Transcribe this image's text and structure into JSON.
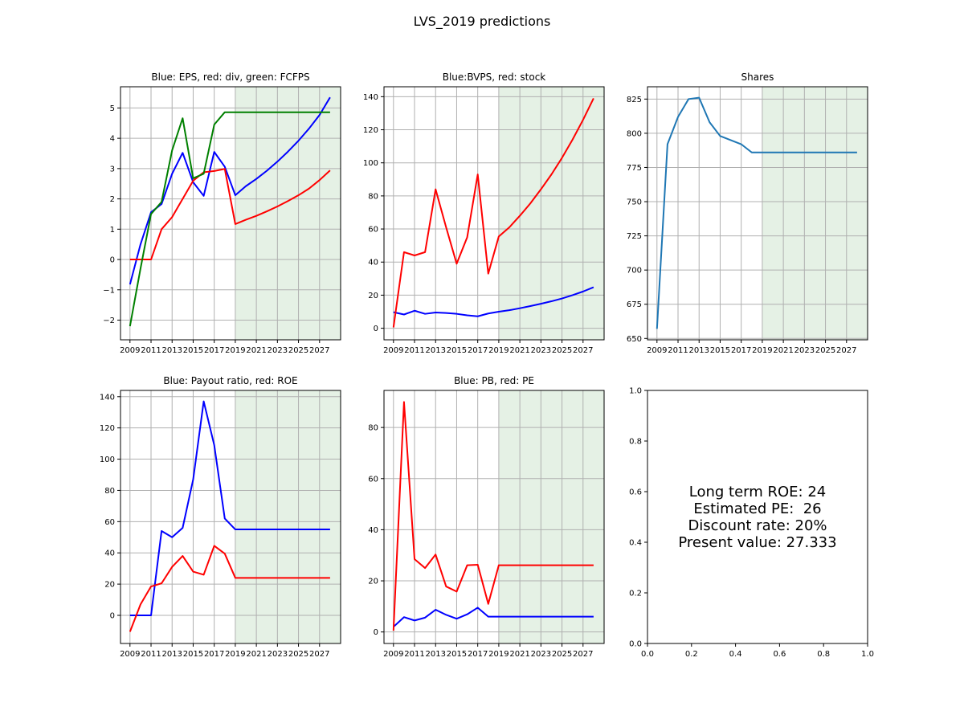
{
  "figure": {
    "suptitle": "LVS_2019 predictions",
    "colors": {
      "blue": "#0000ff",
      "red": "#ff0000",
      "green": "#008000",
      "default_line": "#1f77b4",
      "shade": "#e5f1e5",
      "grid": "#b0b0b0"
    },
    "text_panel": {
      "lines": [
        "Long term ROE: 24",
        "Estimated PE:  26",
        "Discount rate: 20%",
        "Present value: 27.333"
      ],
      "xlim": [
        0,
        1
      ],
      "ylim": [
        0,
        1
      ],
      "xticks": [
        "0.0",
        "0.2",
        "0.4",
        "0.6",
        "0.8",
        "1.0"
      ],
      "yticks": [
        "0.0",
        "0.2",
        "0.4",
        "0.6",
        "0.8",
        "1.0"
      ]
    }
  },
  "chart_data": [
    {
      "type": "line",
      "title": "Blue: EPS, red: div, green: FCFPS",
      "xlim": [
        2008.1,
        2029.0
      ],
      "ylim": [
        -2.65,
        5.7
      ],
      "xticks": [
        2009,
        2011,
        2013,
        2015,
        2017,
        2019,
        2021,
        2023,
        2025,
        2027
      ],
      "yticks": [
        -2,
        -1,
        0,
        1,
        2,
        3,
        4,
        5
      ],
      "grid": true,
      "shaded_x": [
        2019,
        2029.0
      ],
      "x": [
        2009,
        2010,
        2011,
        2012,
        2013,
        2014,
        2015,
        2016,
        2017,
        2018,
        2019,
        2020,
        2021,
        2022,
        2023,
        2024,
        2025,
        2026,
        2027,
        2028
      ],
      "series": [
        {
          "color": "blue",
          "values": [
            -0.82,
            0.5,
            1.56,
            1.83,
            2.83,
            3.52,
            2.55,
            2.1,
            3.55,
            3.06,
            2.12,
            2.42,
            2.66,
            2.93,
            3.23,
            3.56,
            3.92,
            4.32,
            4.77,
            5.35
          ]
        },
        {
          "color": "red",
          "values": [
            0,
            0,
            0,
            1.0,
            1.4,
            2.0,
            2.6,
            2.88,
            2.92,
            2.99,
            1.17,
            1.31,
            1.44,
            1.59,
            1.75,
            1.93,
            2.12,
            2.34,
            2.62,
            2.94
          ]
        },
        {
          "color": "green",
          "values": [
            -2.2,
            -0.3,
            1.5,
            1.9,
            3.6,
            4.66,
            2.68,
            2.83,
            4.45,
            4.86,
            4.86,
            4.86,
            4.86,
            4.86,
            4.86,
            4.86,
            4.86,
            4.86,
            4.86,
            4.86
          ]
        }
      ]
    },
    {
      "type": "line",
      "title": "Blue:BVPS, red: stock",
      "xlim": [
        2008.1,
        2029.0
      ],
      "ylim": [
        -7,
        146
      ],
      "xticks": [
        2009,
        2011,
        2013,
        2015,
        2017,
        2019,
        2021,
        2023,
        2025,
        2027
      ],
      "yticks": [
        0,
        20,
        40,
        60,
        80,
        100,
        120,
        140
      ],
      "grid": true,
      "shaded_x": [
        2019,
        2029.0
      ],
      "x": [
        2009,
        2010,
        2011,
        2012,
        2013,
        2014,
        2015,
        2016,
        2017,
        2018,
        2019,
        2020,
        2021,
        2022,
        2023,
        2024,
        2025,
        2026,
        2027,
        2028
      ],
      "series": [
        {
          "color": "blue",
          "values": [
            9.7,
            8.3,
            10.6,
            8.7,
            9.5,
            9.2,
            8.7,
            7.8,
            7.2,
            8.9,
            10.0,
            10.9,
            12.1,
            13.4,
            14.8,
            16.3,
            18.0,
            20.0,
            22.2,
            24.8
          ]
        },
        {
          "color": "red",
          "values": [
            0.5,
            46,
            44,
            46,
            84,
            61,
            39,
            55,
            93,
            33,
            55.5,
            61,
            68,
            75.5,
            84,
            93,
            103,
            114,
            126,
            139
          ]
        }
      ]
    },
    {
      "type": "line",
      "title": "Shares",
      "xlim": [
        2008.1,
        2029.0
      ],
      "ylim": [
        649,
        834
      ],
      "xticks": [
        2009,
        2011,
        2013,
        2015,
        2017,
        2019,
        2021,
        2023,
        2025,
        2027
      ],
      "yticks": [
        650,
        675,
        700,
        725,
        750,
        775,
        800,
        825
      ],
      "grid": true,
      "shaded_x": [
        2019,
        2029.0
      ],
      "x": [
        2009,
        2010,
        2011,
        2012,
        2013,
        2014,
        2015,
        2016,
        2017,
        2018,
        2019,
        2020,
        2021,
        2022,
        2023,
        2024,
        2025,
        2026,
        2027,
        2028
      ],
      "series": [
        {
          "color": "default_line",
          "values": [
            657,
            792,
            812,
            825,
            826,
            808,
            798,
            795,
            792,
            786,
            786,
            786,
            786,
            786,
            786,
            786,
            786,
            786,
            786,
            786
          ]
        }
      ]
    },
    {
      "type": "line",
      "title": "Blue: Payout ratio, red: ROE",
      "xlim": [
        2008.1,
        2029.0
      ],
      "ylim": [
        -18,
        144
      ],
      "xticks": [
        2009,
        2011,
        2013,
        2015,
        2017,
        2019,
        2021,
        2023,
        2025,
        2027
      ],
      "yticks": [
        0,
        20,
        40,
        60,
        80,
        100,
        120,
        140
      ],
      "grid": true,
      "shaded_x": [
        2019,
        2029.0
      ],
      "x": [
        2009,
        2010,
        2011,
        2012,
        2013,
        2014,
        2015,
        2016,
        2017,
        2018,
        2019,
        2020,
        2021,
        2022,
        2023,
        2024,
        2025,
        2026,
        2027,
        2028
      ],
      "series": [
        {
          "color": "blue",
          "values": [
            0,
            0,
            0,
            54,
            50,
            56,
            87,
            137,
            109,
            62,
            55,
            55,
            55,
            55,
            55,
            55,
            55,
            55,
            55,
            55
          ]
        },
        {
          "color": "red",
          "values": [
            -10.5,
            7,
            18.5,
            20.5,
            31,
            38,
            28,
            26,
            44.5,
            39.5,
            24,
            24,
            24,
            24,
            24,
            24,
            24,
            24,
            24,
            24
          ]
        }
      ]
    },
    {
      "type": "line",
      "title": "Blue: PB, red: PE",
      "xlim": [
        2008.1,
        2029.0
      ],
      "ylim": [
        -4.5,
        94.5
      ],
      "xticks": [
        2009,
        2011,
        2013,
        2015,
        2017,
        2019,
        2021,
        2023,
        2025,
        2027
      ],
      "yticks": [
        0,
        20,
        40,
        60,
        80
      ],
      "grid": true,
      "shaded_x": [
        2019,
        2029.0
      ],
      "x": [
        2009,
        2010,
        2011,
        2012,
        2013,
        2014,
        2015,
        2016,
        2017,
        2018,
        2019,
        2020,
        2021,
        2022,
        2023,
        2024,
        2025,
        2026,
        2027,
        2028
      ],
      "series": [
        {
          "color": "blue",
          "values": [
            2.0,
            5.8,
            4.5,
            5.6,
            8.7,
            6.7,
            5.2,
            6.9,
            9.5,
            6.0,
            6.0,
            6.0,
            6.0,
            6.0,
            6.0,
            6.0,
            6.0,
            6.0,
            6.0,
            6.0
          ]
        },
        {
          "color": "red",
          "values": [
            0.5,
            90,
            28.5,
            25,
            30.3,
            17.8,
            15.8,
            26.1,
            26.3,
            11.0,
            26.1,
            26.1,
            26.1,
            26.1,
            26.1,
            26.1,
            26.1,
            26.1,
            26.1,
            26.1
          ]
        }
      ]
    }
  ]
}
